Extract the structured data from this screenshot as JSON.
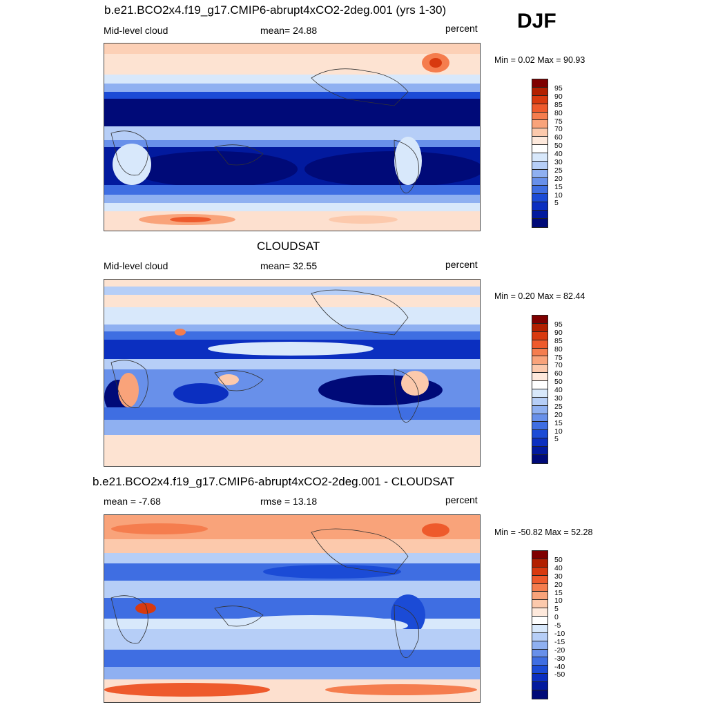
{
  "season": "DJF",
  "panels": [
    {
      "title": "b.e21.BCO2x4.f19_g17.CMIP6-abrupt4xCO2-2deg.001 (yrs 1-30)",
      "left": "Mid-level cloud",
      "center": "mean=  24.88",
      "right": "percent",
      "minmax": "Min =   0.02 Max =  90.93",
      "colorbar": {
        "labels": [
          "95",
          "90",
          "85",
          "80",
          "75",
          "70",
          "60",
          "50",
          "40",
          "30",
          "25",
          "20",
          "15",
          "10",
          "5"
        ],
        "colors": [
          "#7f0000",
          "#b22000",
          "#d83a0f",
          "#ee5a2c",
          "#f57d4e",
          "#f9a37a",
          "#fcc9ac",
          "#fee9dc",
          "#ffffff",
          "#d8e8fb",
          "#b6cef7",
          "#8fb0f1",
          "#6890ea",
          "#3f6ee2",
          "#1b4bd6",
          "#0b2fc0",
          "#021a9e",
          "#000a78"
        ]
      },
      "map_style": "model"
    },
    {
      "title": "CLOUDSAT",
      "left": "Mid-level cloud",
      "center": "mean=  32.55",
      "right": "percent",
      "minmax": "Min =   0.20 Max =  82.44",
      "colorbar": {
        "labels": [
          "95",
          "90",
          "85",
          "80",
          "75",
          "70",
          "60",
          "50",
          "40",
          "30",
          "25",
          "20",
          "15",
          "10",
          "5"
        ],
        "colors": [
          "#7f0000",
          "#b22000",
          "#d83a0f",
          "#ee5a2c",
          "#f57d4e",
          "#f9a37a",
          "#fcc9ac",
          "#fee9dc",
          "#ffffff",
          "#d8e8fb",
          "#b6cef7",
          "#8fb0f1",
          "#6890ea",
          "#3f6ee2",
          "#1b4bd6",
          "#0b2fc0",
          "#021a9e",
          "#000a78"
        ]
      },
      "map_style": "obs"
    },
    {
      "title": "b.e21.BCO2x4.f19_g17.CMIP6-abrupt4xCO2-2deg.001 - CLOUDSAT",
      "left": "mean =  -7.68",
      "center": "rmse =  13.18",
      "right": "percent",
      "minmax": "Min = -50.82 Max =  52.28",
      "colorbar": {
        "labels": [
          "50",
          "40",
          "30",
          "20",
          "15",
          "10",
          "5",
          "0",
          "-5",
          "-10",
          "-15",
          "-20",
          "-30",
          "-40",
          "-50"
        ],
        "colors": [
          "#7f0000",
          "#b22000",
          "#d83a0f",
          "#ee5a2c",
          "#f57d4e",
          "#f9a37a",
          "#fcc9ac",
          "#fee9dc",
          "#ffffff",
          "#d8e8fb",
          "#b6cef7",
          "#8fb0f1",
          "#6890ea",
          "#3f6ee2",
          "#1b4bd6",
          "#0b2fc0",
          "#021a9e",
          "#000a78"
        ]
      },
      "map_style": "diff"
    }
  ]
}
